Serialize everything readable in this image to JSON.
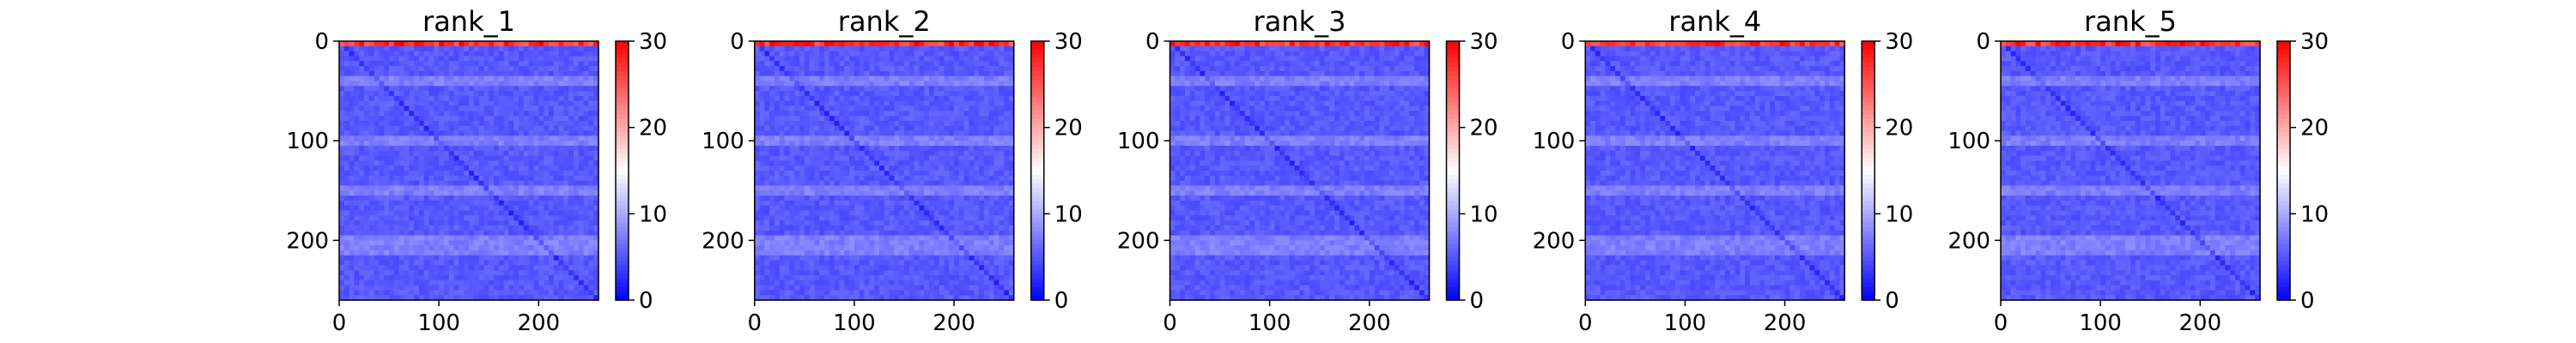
{
  "chart_data": [
    {
      "type": "heatmap",
      "title": "rank_1",
      "xlim": [
        0,
        260
      ],
      "ylim": [
        0,
        260
      ],
      "y_inverted": true,
      "x_ticks": [
        0,
        100,
        200
      ],
      "y_ticks": [
        0,
        100,
        200
      ],
      "colorbar": {
        "range": [
          0,
          30
        ],
        "ticks": [
          0,
          10,
          20,
          30
        ],
        "colormap": [
          "#0000ff",
          "#ffffff",
          "#ff0000"
        ]
      },
      "dominant_value_range": [
        1,
        8
      ],
      "lighter_rows": [
        40,
        100,
        150,
        200,
        210
      ],
      "high_value_edge": "top rows near 0"
    },
    {
      "type": "heatmap",
      "title": "rank_2",
      "xlim": [
        0,
        260
      ],
      "ylim": [
        0,
        260
      ],
      "y_inverted": true,
      "x_ticks": [
        0,
        100,
        200
      ],
      "y_ticks": [
        0,
        100,
        200
      ],
      "colorbar": {
        "range": [
          0,
          30
        ],
        "ticks": [
          0,
          10,
          20,
          30
        ],
        "colormap": [
          "#0000ff",
          "#ffffff",
          "#ff0000"
        ]
      },
      "dominant_value_range": [
        1,
        8
      ],
      "lighter_rows": [
        40,
        100,
        150,
        200,
        210
      ],
      "high_value_edge": "top rows near 0"
    },
    {
      "type": "heatmap",
      "title": "rank_3",
      "xlim": [
        0,
        260
      ],
      "ylim": [
        0,
        260
      ],
      "y_inverted": true,
      "x_ticks": [
        0,
        100,
        200
      ],
      "y_ticks": [
        0,
        100,
        200
      ],
      "colorbar": {
        "range": [
          0,
          30
        ],
        "ticks": [
          0,
          10,
          20,
          30
        ],
        "colormap": [
          "#0000ff",
          "#ffffff",
          "#ff0000"
        ]
      },
      "dominant_value_range": [
        1,
        8
      ],
      "lighter_rows": [
        40,
        100,
        150,
        200,
        210
      ],
      "high_value_edge": "top rows near 0"
    },
    {
      "type": "heatmap",
      "title": "rank_4",
      "xlim": [
        0,
        260
      ],
      "ylim": [
        0,
        260
      ],
      "y_inverted": true,
      "x_ticks": [
        0,
        100,
        200
      ],
      "y_ticks": [
        0,
        100,
        200
      ],
      "colorbar": {
        "range": [
          0,
          30
        ],
        "ticks": [
          0,
          10,
          20,
          30
        ],
        "colormap": [
          "#0000ff",
          "#ffffff",
          "#ff0000"
        ]
      },
      "dominant_value_range": [
        1,
        8
      ],
      "lighter_rows": [
        40,
        100,
        150,
        200,
        210
      ],
      "high_value_edge": "top rows near 0"
    },
    {
      "type": "heatmap",
      "title": "rank_5",
      "xlim": [
        0,
        260
      ],
      "ylim": [
        0,
        260
      ],
      "y_inverted": true,
      "x_ticks": [
        0,
        100,
        200
      ],
      "y_ticks": [
        0,
        100,
        200
      ],
      "colorbar": {
        "range": [
          0,
          30
        ],
        "ticks": [
          0,
          10,
          20,
          30
        ],
        "colormap": [
          "#0000ff",
          "#ffffff",
          "#ff0000"
        ]
      },
      "dominant_value_range": [
        1,
        8
      ],
      "lighter_rows": [
        40,
        100,
        150,
        200,
        210
      ],
      "high_value_edge": "top rows near 0"
    }
  ]
}
